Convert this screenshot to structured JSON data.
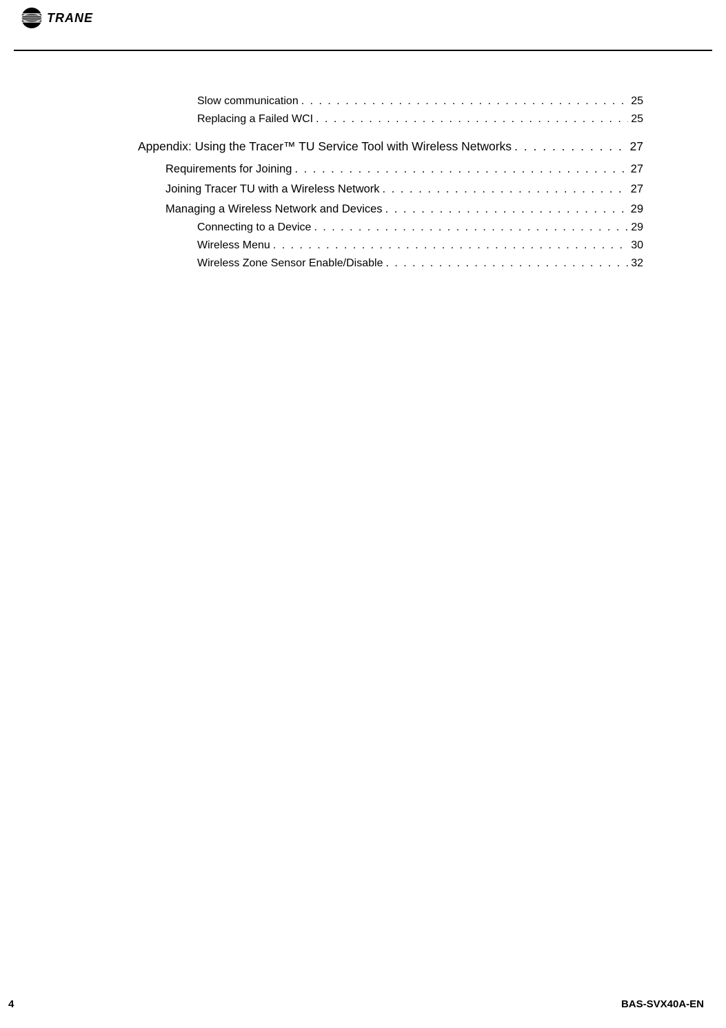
{
  "header": {
    "logo_text": "TRANE",
    "logo_icon_name": "trane-globe-icon"
  },
  "toc_entries": [
    {
      "label": "Slow communication",
      "page": "25",
      "level": 3
    },
    {
      "label": "Replacing a Failed WCI",
      "page": "25",
      "level": 3
    },
    {
      "label": "Appendix: Using the Tracer™ TU Service Tool with Wireless Networks",
      "page": "27",
      "level": 1
    },
    {
      "label": "Requirements for Joining",
      "page": "27",
      "level": 2
    },
    {
      "label": "Joining Tracer TU with a Wireless Network",
      "page": "27",
      "level": 2
    },
    {
      "label": "Managing a Wireless Network and Devices",
      "page": "29",
      "level": 2
    },
    {
      "label": "Connecting to a Device",
      "page": "29",
      "level": 3
    },
    {
      "label": "Wireless Menu",
      "page": "30",
      "level": 3
    },
    {
      "label": "Wireless Zone Sensor Enable/Disable",
      "page": "32",
      "level": 3
    }
  ],
  "footer": {
    "page_number": "4",
    "doc_id": "BAS-SVX40A-EN"
  },
  "colors": {
    "text": "#000000",
    "background": "#ffffff",
    "rule": "#000000"
  },
  "typography": {
    "body_font": "Arial, Helvetica, sans-serif",
    "level1_fontsize": 17.5,
    "level2_fontsize": 16.5,
    "level3_fontsize": 16,
    "footer_fontsize": 15
  }
}
